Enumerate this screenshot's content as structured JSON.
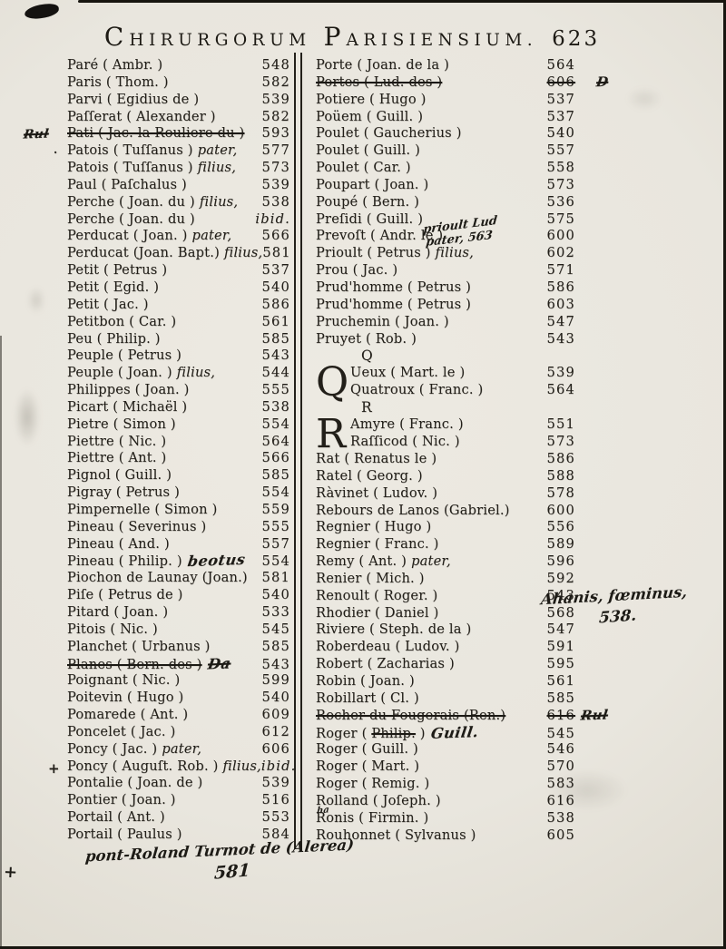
{
  "header": {
    "title_word1_initial": "C",
    "title_word1_rest": "HIRURGORUM",
    "title_word2_initial": "P",
    "title_word2_rest": "ARISIENSIUM.",
    "page_number": "623"
  },
  "left_column": {
    "items": [
      {
        "n": "Paré ( Ambr. )",
        "p": "548"
      },
      {
        "n": "Paris ( Thom. )",
        "p": "582"
      },
      {
        "n": "Parvi ( Egidius de )",
        "p": "539"
      },
      {
        "n": "Paſſerat ( Alexander )",
        "p": "582"
      },
      {
        "n": "Pati ( Jac. la Rouliere du )",
        "p": "593",
        "st": true,
        "mh": {
          "t": "Rul",
          "st": true
        }
      },
      {
        "n": "Patois ( Tuſſanus )",
        "s": "pater,",
        "p": "577",
        "b": "·"
      },
      {
        "n": "Patois ( Tuſſanus )",
        "s": "filius,",
        "p": "573"
      },
      {
        "n": "Paul ( Paſchalus )",
        "p": "539"
      },
      {
        "n": "Perche ( Joan. du )",
        "s": "filius,",
        "p": "538"
      },
      {
        "n": "Perche ( Joan. du )",
        "p": "ibid."
      },
      {
        "n": "Perducat ( Joan. )",
        "s": "pater,",
        "p": "566"
      },
      {
        "n": "Perducat (Joan. Bapt.)",
        "s": "filius,",
        "p": "581"
      },
      {
        "n": "Petit ( Petrus )",
        "p": "537"
      },
      {
        "n": "Petit ( Egid. )",
        "p": "540"
      },
      {
        "n": "Petit ( Jac. )",
        "p": "586"
      },
      {
        "n": "Petitbon ( Car. )",
        "p": "561"
      },
      {
        "n": "Peu ( Philip. )",
        "p": "585"
      },
      {
        "n": "Peuple ( Petrus )",
        "p": "543"
      },
      {
        "n": "Peuple ( Joan. )",
        "s": "filius,",
        "p": "544"
      },
      {
        "n": "Philippes ( Joan. )",
        "p": "555"
      },
      {
        "n": "Picart ( Michaël )",
        "p": "538"
      },
      {
        "n": "Pietre ( Simon )",
        "p": "554"
      },
      {
        "n": "Piettre ( Nic. )",
        "p": "564"
      },
      {
        "n": "Piettre ( Ant. )",
        "p": "566"
      },
      {
        "n": "Pignol ( Guill. )",
        "p": "585"
      },
      {
        "n": "Pigray ( Petrus )",
        "p": "554"
      },
      {
        "n": "Pimpernelle ( Simon )",
        "p": "559"
      },
      {
        "n": "Pineau ( Severinus )",
        "p": "555"
      },
      {
        "n": "Pineau ( And. )",
        "p": "557"
      },
      {
        "n": "Pineau ( Philip. )",
        "p": "554",
        "ih": {
          "t": "beotus"
        }
      },
      {
        "n": "Piochon de Launay (Joan.)",
        "p": "581"
      },
      {
        "n": "Piſe ( Petrus de )",
        "p": "540"
      },
      {
        "n": "Pitard ( Joan. )",
        "p": "533"
      },
      {
        "n": "Pitois ( Nic. )",
        "p": "545"
      },
      {
        "n": "Planchet ( Urbanus )",
        "p": "585"
      },
      {
        "n": "Planes ( Bern. des )",
        "p": "543",
        "st": true,
        "ih": {
          "t": "Da",
          "st": true
        }
      },
      {
        "n": "Poignant ( Nic. )",
        "p": "599"
      },
      {
        "n": "Poitevin ( Hugo )",
        "p": "540"
      },
      {
        "n": "Pomarede ( Ant. )",
        "p": "609"
      },
      {
        "n": "Poncelet ( Jac. )",
        "p": "612"
      },
      {
        "n": "Poncy ( Jac. )",
        "s": "pater,",
        "p": "606"
      },
      {
        "n": "Poncy ( Auguſt. Rob. )",
        "s": "filius,",
        "p": "ibid.",
        "b": "+"
      },
      {
        "n": "Pontalie ( Joan. de )",
        "p": "539"
      },
      {
        "n": "Pontier ( Joan. )",
        "p": "516"
      },
      {
        "n": "Portail ( Ant. )",
        "p": "553"
      },
      {
        "n": "Portail ( Paulus )",
        "p": "584"
      }
    ]
  },
  "right_column": {
    "items": [
      {
        "n": "Porte ( Joan. de la )",
        "p": "564"
      },
      {
        "n": "Portes ( Lud. des )",
        "p": "606",
        "st": true,
        "pst": true,
        "ah": {
          "t": "D",
          "st": true
        }
      },
      {
        "n": "Potiere ( Hugo )",
        "p": "537"
      },
      {
        "n": "Poüem ( Guill. )",
        "p": "537"
      },
      {
        "n": "Poulet ( Gaucherius )",
        "p": "540"
      },
      {
        "n": "Poulet ( Guill. )",
        "p": "557"
      },
      {
        "n": "Poulet ( Car. )",
        "p": "558"
      },
      {
        "n": "Poupart ( Joan. )",
        "p": "573"
      },
      {
        "n": "Poupé ( Bern. )",
        "p": "536"
      },
      {
        "n": "Preſidi ( Guill. )",
        "p": "575"
      },
      {
        "n": "Prevoſt ( Andr. le )",
        "p": "600"
      },
      {
        "n": "Prioult ( Petrus )",
        "s": "filius,",
        "p": "602"
      },
      {
        "n": "Prou ( Jac. )",
        "p": "571"
      },
      {
        "n": "Prud'homme ( Petrus )",
        "p": "586"
      },
      {
        "n": "Prud'homme ( Petrus )",
        "p": "603"
      },
      {
        "n": "Pruchemin ( Joan. )",
        "p": "547"
      },
      {
        "n": "Pruyet ( Rob. )",
        "p": "543"
      },
      {
        "k": "h",
        "t": "Q"
      },
      {
        "k": "g",
        "cap": "Q",
        "rows": [
          {
            "n": "Ueux ( Mart. le )",
            "p": "539"
          },
          {
            "n": "Quatroux ( Franc. )",
            "p": "564"
          }
        ]
      },
      {
        "k": "h",
        "t": "R"
      },
      {
        "k": "g",
        "cap": "R",
        "rows": [
          {
            "n": "Amyre ( Franc. )",
            "p": "551"
          },
          {
            "n": "Raſſicod ( Nic. )",
            "p": "573"
          }
        ]
      },
      {
        "n": "Rat ( Renatus le )",
        "p": "586"
      },
      {
        "n": "Ratel ( Georg. )",
        "p": "588"
      },
      {
        "n": "Ràvinet ( Ludov. )",
        "p": "578"
      },
      {
        "n": "Rebours de Lanos (Gabriel.)",
        "p": "600"
      },
      {
        "n": "Regnier ( Hugo )",
        "p": "556"
      },
      {
        "n": "Regnier ( Franc. )",
        "p": "589"
      },
      {
        "n": "Remy ( Ant. )",
        "s": "pater,",
        "p": "596"
      },
      {
        "n": "Renier ( Mich. )",
        "p": "592"
      },
      {
        "n": "Renoult ( Roger. )",
        "p": "543"
      },
      {
        "n": "Rhodier ( Daniel )",
        "p": "568"
      },
      {
        "n": "Riviere ( Steph. de la )",
        "p": "547"
      },
      {
        "n": "Roberdeau ( Ludov. )",
        "p": "591"
      },
      {
        "n": "Robert ( Zacharias )",
        "p": "595"
      },
      {
        "n": "Robin ( Joan. )",
        "p": "561"
      },
      {
        "n": "Robillart ( Cl. )",
        "p": "585"
      },
      {
        "n": "Rocher du Fougerais (Ren.)",
        "p": "616",
        "st": true,
        "pst": true,
        "ah": {
          "t": "Rul",
          "st": true
        }
      },
      {
        "parts": [
          {
            "t": "Roger ( "
          },
          {
            "t": "Philip.",
            "st": true
          },
          {
            "t": " )"
          }
        ],
        "p": "545",
        "ih": {
          "t": "Guill."
        }
      },
      {
        "n": "Roger ( Guill. )",
        "p": "546"
      },
      {
        "n": "Roger ( Mart. )",
        "p": "570"
      },
      {
        "n": "Roger ( Remig. )",
        "p": "583"
      },
      {
        "n": "Rolland ( Joſeph. )",
        "p": "616"
      },
      {
        "n": "Ronis ( Firmin. )",
        "p": "538"
      },
      {
        "n": "Rouhonnet ( Sylvanus )",
        "p": "605"
      }
    ]
  },
  "annotations": {
    "prevost_line1": "prioult Lud",
    "prevost_line2": "pater, 563",
    "renoult_line1": "Ahanis, fœminus,",
    "renoult_line2": "538.",
    "ronis_mark": "ha",
    "bottom_line": "pont-Roland Turmot de (Alerea)",
    "bottom_number": "581",
    "bottom_cross": "+"
  }
}
